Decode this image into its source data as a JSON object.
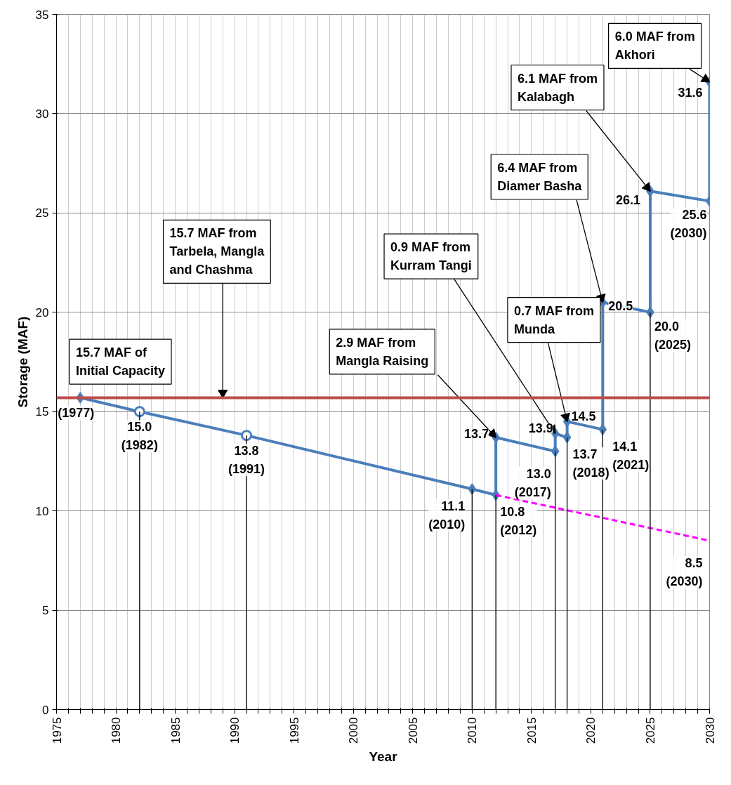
{
  "chart_data": {
    "type": "line",
    "xlabel": "Year",
    "ylabel": "Storage (MAF)",
    "xlim": [
      1975,
      2030
    ],
    "ylim": [
      0,
      35
    ],
    "xticks": [
      1975,
      {
        "value": 1976,
        "label": null
      },
      {
        "value": 1977,
        "label": null
      },
      {
        "value": 1978,
        "label": null
      },
      {
        "value": 1979,
        "label": null
      },
      1980,
      {
        "value": 1981,
        "label": null
      },
      {
        "value": 1982,
        "label": null
      },
      {
        "value": 1983,
        "label": null
      },
      {
        "value": 1984,
        "label": null
      },
      1985,
      {
        "value": 1986,
        "label": null
      },
      {
        "value": 1987,
        "label": null
      },
      {
        "value": 1988,
        "label": null
      },
      {
        "value": 1989,
        "label": null
      },
      1990,
      {
        "value": 1991,
        "label": null
      },
      {
        "value": 1992,
        "label": null
      },
      {
        "value": 1993,
        "label": null
      },
      {
        "value": 1994,
        "label": null
      },
      1995,
      {
        "value": 1996,
        "label": null
      },
      {
        "value": 1997,
        "label": null
      },
      {
        "value": 1998,
        "label": null
      },
      {
        "value": 1999,
        "label": null
      },
      2000,
      {
        "value": 2001,
        "label": null
      },
      {
        "value": 2002,
        "label": null
      },
      {
        "value": 2003,
        "label": null
      },
      {
        "value": 2004,
        "label": null
      },
      2005,
      {
        "value": 2006,
        "label": null
      },
      {
        "value": 2007,
        "label": null
      },
      {
        "value": 2008,
        "label": null
      },
      {
        "value": 2009,
        "label": null
      },
      2010,
      {
        "value": 2011,
        "label": null
      },
      {
        "value": 2012,
        "label": null
      },
      {
        "value": 2013,
        "label": null
      },
      {
        "value": 2014,
        "label": null
      },
      2015,
      {
        "value": 2016,
        "label": null
      },
      {
        "value": 2017,
        "label": null
      },
      {
        "value": 2018,
        "label": null
      },
      {
        "value": 2019,
        "label": null
      },
      2020,
      {
        "value": 2021,
        "label": null
      },
      {
        "value": 2022,
        "label": null
      },
      {
        "value": 2023,
        "label": null
      },
      {
        "value": 2024,
        "label": null
      },
      2025,
      {
        "value": 2026,
        "label": null
      },
      {
        "value": 2027,
        "label": null
      },
      {
        "value": 2028,
        "label": null
      },
      {
        "value": 2029,
        "label": null
      },
      2030
    ],
    "yticks": [
      0,
      5,
      10,
      15,
      20,
      25,
      30,
      35
    ],
    "grid": true,
    "series": [
      {
        "type": "bar",
        "color": "#000000",
        "x": [
          1982,
          1991,
          2010,
          2012,
          2017,
          2018,
          2021,
          2025
        ],
        "values": [
          15.0,
          13.8,
          11.1,
          10.8,
          13.0,
          13.7,
          14.1,
          20.0
        ]
      },
      {
        "type": "line",
        "color": "#ff00ff",
        "line_style": "dashed",
        "x": [
          2012,
          2030
        ],
        "values": [
          10.8,
          8.5
        ],
        "value_labels": [
          null,
          "8.5\n(2030)"
        ]
      },
      {
        "color": "#4a7ebb",
        "marker": "diamond",
        "x": [
          1977,
          1982,
          1991,
          2010,
          2012,
          2012,
          2017,
          2017,
          2018,
          2018,
          2021,
          2021,
          2025,
          2025,
          2030,
          2030
        ],
        "values": [
          15.7,
          15.0,
          13.8,
          11.1,
          10.8,
          13.7,
          13.0,
          13.9,
          13.7,
          14.5,
          14.1,
          20.5,
          20.0,
          26.1,
          25.6,
          31.6
        ],
        "value_labels": [
          null,
          "15.0\n(1982)",
          "13.8\n(1991)",
          "11.1\n(2010)",
          "10.8\n(2012)",
          "13.7",
          "13.0\n(2017)",
          "13.9",
          "13.7\n(2018)",
          "14.5",
          "14.1\n(2021)",
          "20.5",
          "20.0\n(2025)",
          "26.1",
          "25.6\n(2030)",
          "31.6"
        ]
      },
      {
        "type": "scatter",
        "color": "#4a7ebb",
        "marker": "circle",
        "x": [
          1982,
          1991
        ],
        "values": [
          15.0,
          13.8
        ]
      }
    ],
    "ref_lines": [
      {
        "axis": "y",
        "value": 15.7,
        "color": "#be4b48"
      }
    ],
    "annotations": [
      {
        "text": "15.7 MAF of\nInitial Capacity",
        "x": 1977,
        "y": 15.7
      },
      {
        "text": "15.7 MAF from\nTarbela, Mangla\nand Chashma",
        "x": 1989,
        "y": 15.7
      },
      {
        "text": "2.9 MAF from\nMangla Raising",
        "x": 2012,
        "y": 13.7
      },
      {
        "text": "0.9 MAF from\nKurram Tangi",
        "x": 2017,
        "y": 13.9
      },
      {
        "text": "0.7 MAF from\nMunda",
        "x": 2018,
        "y": 14.5
      },
      {
        "text": "6.4 MAF from\nDiamer Basha",
        "x": 2021,
        "y": 20.5
      },
      {
        "text": "6.1 MAF from\nKalabagh",
        "x": 2025,
        "y": 26.1
      },
      {
        "text": "6.0 MAF from\nAkhori",
        "x": 2030,
        "y": 31.6
      },
      {
        "text": "(1977)",
        "x": 1977,
        "y": 15.7
      }
    ]
  }
}
